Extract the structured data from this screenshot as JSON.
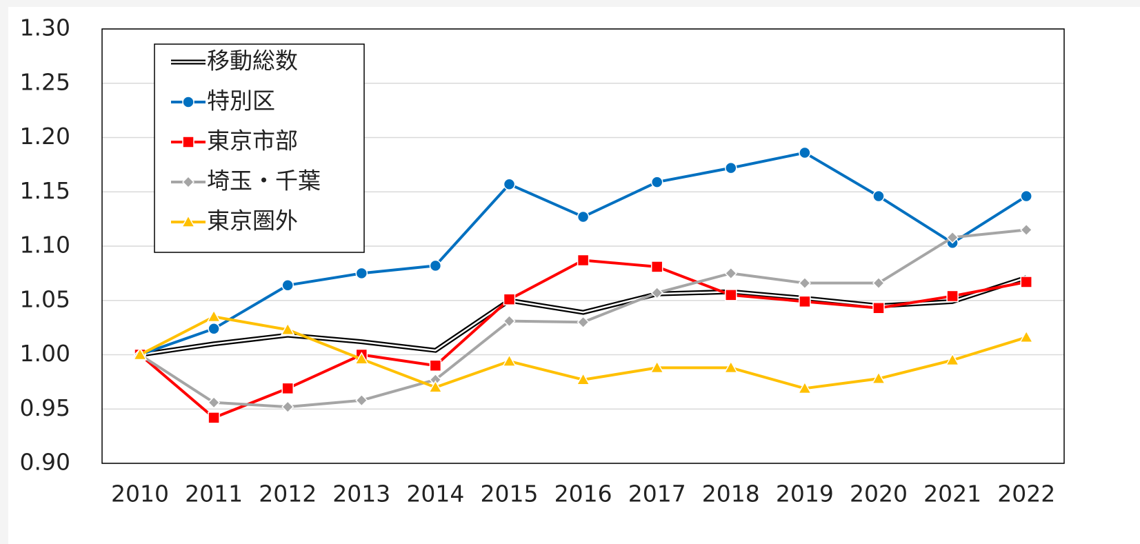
{
  "chart_data": {
    "type": "line",
    "categories": [
      "2010",
      "2011",
      "2012",
      "2013",
      "2014",
      "2015",
      "2016",
      "2017",
      "2018",
      "2019",
      "2020",
      "2021",
      "2022"
    ],
    "series": [
      {
        "name": "移動総数",
        "color": "#000000",
        "marker": "none",
        "values": [
          1.0,
          1.01,
          1.018,
          1.012,
          1.004,
          1.05,
          1.039,
          1.056,
          1.058,
          1.052,
          1.045,
          1.049,
          1.071
        ]
      },
      {
        "name": "特別区",
        "color": "#0070c0",
        "marker": "circle",
        "values": [
          1.0,
          1.024,
          1.064,
          1.075,
          1.082,
          1.157,
          1.127,
          1.159,
          1.172,
          1.186,
          1.146,
          1.103,
          1.146
        ]
      },
      {
        "name": "東京市部",
        "color": "#ff0000",
        "marker": "square",
        "values": [
          1.0,
          0.942,
          0.969,
          1.0,
          0.99,
          1.051,
          1.087,
          1.081,
          1.055,
          1.049,
          1.043,
          1.054,
          1.067
        ]
      },
      {
        "name": "埼玉・千葉",
        "color": "#a5a5a5",
        "marker": "diamond",
        "values": [
          1.0,
          0.956,
          0.952,
          0.958,
          0.977,
          1.031,
          1.03,
          1.057,
          1.075,
          1.066,
          1.066,
          1.108,
          1.115
        ]
      },
      {
        "name": "東京圏外",
        "color": "#ffc000",
        "marker": "triangle",
        "values": [
          1.0,
          1.035,
          1.023,
          0.996,
          0.97,
          0.994,
          0.977,
          0.988,
          0.988,
          0.969,
          0.978,
          0.995,
          1.016
        ]
      }
    ],
    "ylim": [
      0.9,
      1.3
    ],
    "yticks": [
      {
        "value": 0.9,
        "label": "0.90"
      },
      {
        "value": 0.95,
        "label": "0.95"
      },
      {
        "value": 1.0,
        "label": "1.00"
      },
      {
        "value": 1.05,
        "label": "1.05"
      },
      {
        "value": 1.1,
        "label": "1.10"
      },
      {
        "value": 1.15,
        "label": "1.15"
      },
      {
        "value": 1.2,
        "label": "1.20"
      },
      {
        "value": 1.25,
        "label": "1.25"
      },
      {
        "value": 1.3,
        "label": "1.30"
      }
    ],
    "grid": true,
    "legend": "top-left"
  }
}
